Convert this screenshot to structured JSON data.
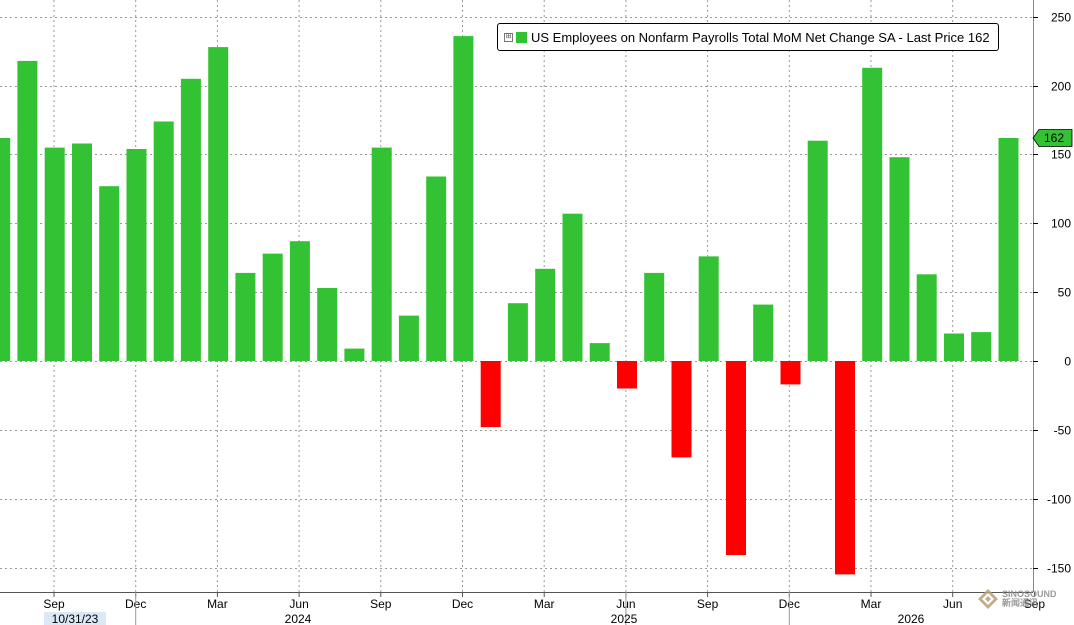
{
  "chart_data": {
    "type": "bar",
    "legend": {
      "label": "US Employees on Nonfarm Payrolls Total MoM Net Change SA - Last Price 162",
      "placement": "top-right",
      "expand_glyph": "⊞"
    },
    "last_price_label": "162",
    "y_axis": {
      "position": "right",
      "ylim": [
        -165,
        255
      ],
      "ticks": [
        250,
        200,
        150,
        100,
        50,
        0,
        -50,
        -100,
        -150
      ]
    },
    "x_axis": {
      "month_ticks": [
        "Sep",
        "Dec",
        "Mar",
        "Jun",
        "Sep",
        "Dec",
        "Mar",
        "Jun",
        "Sep",
        "Dec",
        "Mar",
        "Jun",
        "Sep"
      ],
      "year_labels": [
        "10/31/23",
        "2024",
        "2025",
        "2026"
      ]
    },
    "grid": true,
    "colors": {
      "positive": "#33c233",
      "negative": "#ff0000",
      "axis": "#33c233",
      "grid": "#9a9a9a"
    },
    "values": [
      162,
      218,
      155,
      158,
      127,
      154,
      174,
      205,
      228,
      64,
      78,
      87,
      53,
      9,
      155,
      33,
      134,
      236,
      -48,
      42,
      67,
      107,
      13,
      -20,
      64,
      -70,
      76,
      -141,
      41,
      -17,
      160,
      -155,
      213,
      148,
      63,
      20,
      21,
      162
    ]
  },
  "watermark": {
    "text_line1": "SINOSOUND",
    "text_line2": "新闻通讯"
  }
}
